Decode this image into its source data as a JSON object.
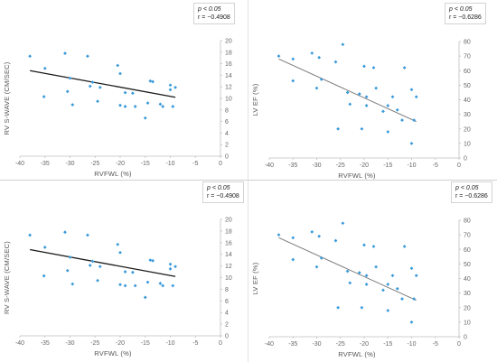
{
  "chart_data": [
    {
      "type": "scatter",
      "panel": "rv-top",
      "xlabel": "RVFWL (%)",
      "ylabel": "RV S-WAVE  (CM/SEC)",
      "xlim": [
        -40,
        0
      ],
      "ylim": [
        0,
        20
      ],
      "xticks": [
        -40,
        -35,
        -30,
        -25,
        -20,
        -15,
        -10,
        -5,
        0
      ],
      "yticks": [
        0,
        2,
        4,
        6,
        8,
        10,
        12,
        14,
        16,
        18,
        20
      ],
      "y_axis_position": "right",
      "stats": {
        "p": "p < 0.05",
        "r": "r = −0.4908"
      },
      "points": [
        {
          "x": -38,
          "y": 17.3
        },
        {
          "x": -35,
          "y": 15.2
        },
        {
          "x": -35.2,
          "y": 10.3
        },
        {
          "x": -31,
          "y": 17.8
        },
        {
          "x": -30.5,
          "y": 11.2
        },
        {
          "x": -30,
          "y": 13.5
        },
        {
          "x": -29.5,
          "y": 8.9
        },
        {
          "x": -26.5,
          "y": 17.3
        },
        {
          "x": -26,
          "y": 12.1
        },
        {
          "x": -25.5,
          "y": 12.8
        },
        {
          "x": -24.5,
          "y": 9.5
        },
        {
          "x": -24,
          "y": 11.9
        },
        {
          "x": -20.5,
          "y": 15.7
        },
        {
          "x": -20,
          "y": 14.3
        },
        {
          "x": -20,
          "y": 8.8
        },
        {
          "x": -19,
          "y": 11
        },
        {
          "x": -19,
          "y": 8.6
        },
        {
          "x": -17.5,
          "y": 10.9
        },
        {
          "x": -17,
          "y": 8.6
        },
        {
          "x": -15,
          "y": 6.6
        },
        {
          "x": -14.5,
          "y": 9.2
        },
        {
          "x": -14,
          "y": 13
        },
        {
          "x": -13.5,
          "y": 12.9
        },
        {
          "x": -12,
          "y": 9
        },
        {
          "x": -11.5,
          "y": 8.6
        },
        {
          "x": -10,
          "y": 12.3
        },
        {
          "x": -10,
          "y": 11.5
        },
        {
          "x": -9.5,
          "y": 8.6
        },
        {
          "x": -9,
          "y": 11.9
        }
      ],
      "trendline": {
        "x": [
          -38,
          -9
        ],
        "y": [
          14.8,
          10.2
        ]
      }
    },
    {
      "type": "scatter",
      "panel": "lv-top",
      "xlabel": "RVFWL (%)",
      "ylabel": "LV EF  (%)",
      "xlim": [
        -40,
        0
      ],
      "ylim": [
        0,
        80
      ],
      "xticks": [
        -40,
        -35,
        -30,
        -25,
        -20,
        -15,
        -10,
        -5,
        0
      ],
      "yticks": [
        0,
        10,
        20,
        30,
        40,
        50,
        60,
        70,
        80
      ],
      "y_axis_position": "right",
      "stats": {
        "p": "p < 0.05",
        "r": "r = −0.6286"
      },
      "points": [
        {
          "x": -38,
          "y": 70
        },
        {
          "x": -35,
          "y": 68
        },
        {
          "x": -35,
          "y": 53
        },
        {
          "x": -31,
          "y": 72
        },
        {
          "x": -30,
          "y": 48
        },
        {
          "x": -29.5,
          "y": 69
        },
        {
          "x": -29,
          "y": 54
        },
        {
          "x": -26,
          "y": 66
        },
        {
          "x": -25.5,
          "y": 20
        },
        {
          "x": -24.5,
          "y": 78
        },
        {
          "x": -23.5,
          "y": 45
        },
        {
          "x": -23,
          "y": 37
        },
        {
          "x": -21,
          "y": 44
        },
        {
          "x": -20.5,
          "y": 20
        },
        {
          "x": -20,
          "y": 63
        },
        {
          "x": -19.5,
          "y": 42
        },
        {
          "x": -19.5,
          "y": 36
        },
        {
          "x": -18,
          "y": 62
        },
        {
          "x": -17.5,
          "y": 48
        },
        {
          "x": -16,
          "y": 32
        },
        {
          "x": -15,
          "y": 36
        },
        {
          "x": -15,
          "y": 18
        },
        {
          "x": -14,
          "y": 42
        },
        {
          "x": -13,
          "y": 33
        },
        {
          "x": -12,
          "y": 26
        },
        {
          "x": -11.5,
          "y": 62
        },
        {
          "x": -10,
          "y": 47
        },
        {
          "x": -10,
          "y": 10
        },
        {
          "x": -9.5,
          "y": 26
        },
        {
          "x": -9,
          "y": 42
        }
      ],
      "trendline": {
        "x": [
          -38,
          -9
        ],
        "y": [
          68,
          25
        ]
      }
    },
    {
      "type": "scatter",
      "panel": "rv-bottom",
      "xlabel": "RVFWL (%)",
      "ylabel": "RV S-WAVE  (CM/SEC)",
      "xlim": [
        -40,
        0
      ],
      "ylim": [
        0,
        20
      ],
      "xticks": [
        -40,
        -35,
        -30,
        -25,
        -20,
        -15,
        -10,
        -5,
        0
      ],
      "yticks": [
        0,
        2,
        4,
        6,
        8,
        10,
        12,
        14,
        16,
        18,
        20
      ],
      "y_axis_position": "right",
      "stats": {
        "p": "p < 0.05",
        "r": "r = −0.4908"
      },
      "points": [
        {
          "x": -38,
          "y": 17.3
        },
        {
          "x": -35,
          "y": 15.2
        },
        {
          "x": -35.2,
          "y": 10.3
        },
        {
          "x": -31,
          "y": 17.8
        },
        {
          "x": -30.5,
          "y": 11.2
        },
        {
          "x": -30,
          "y": 13.5
        },
        {
          "x": -29.5,
          "y": 8.9
        },
        {
          "x": -26.5,
          "y": 17.3
        },
        {
          "x": -26,
          "y": 12.1
        },
        {
          "x": -25.5,
          "y": 12.8
        },
        {
          "x": -24.5,
          "y": 9.5
        },
        {
          "x": -24,
          "y": 11.9
        },
        {
          "x": -20.5,
          "y": 15.7
        },
        {
          "x": -20,
          "y": 14.3
        },
        {
          "x": -20,
          "y": 8.8
        },
        {
          "x": -19,
          "y": 11
        },
        {
          "x": -19,
          "y": 8.6
        },
        {
          "x": -17.5,
          "y": 10.9
        },
        {
          "x": -17,
          "y": 8.6
        },
        {
          "x": -15,
          "y": 6.6
        },
        {
          "x": -14.5,
          "y": 9.2
        },
        {
          "x": -14,
          "y": 13
        },
        {
          "x": -13.5,
          "y": 12.9
        },
        {
          "x": -12,
          "y": 9
        },
        {
          "x": -11.5,
          "y": 8.6
        },
        {
          "x": -10,
          "y": 12.3
        },
        {
          "x": -10,
          "y": 11.5
        },
        {
          "x": -9.5,
          "y": 8.6
        },
        {
          "x": -9,
          "y": 11.9
        }
      ],
      "trendline": {
        "x": [
          -38,
          -9
        ],
        "y": [
          14.8,
          10.2
        ]
      }
    },
    {
      "type": "scatter",
      "panel": "lv-bottom",
      "xlabel": "RVFWL (%)",
      "ylabel": "LV EF  (%)",
      "xlim": [
        -40,
        0
      ],
      "ylim": [
        0,
        80
      ],
      "xticks": [
        -40,
        -35,
        -30,
        -25,
        -20,
        -15,
        -10,
        -5,
        0
      ],
      "yticks": [
        0,
        10,
        20,
        30,
        40,
        50,
        60,
        70,
        80
      ],
      "y_axis_position": "right",
      "stats": {
        "p": "p < 0.05",
        "r": "r = −0.6286"
      },
      "points": [
        {
          "x": -38,
          "y": 70
        },
        {
          "x": -35,
          "y": 68
        },
        {
          "x": -35,
          "y": 53
        },
        {
          "x": -31,
          "y": 72
        },
        {
          "x": -30,
          "y": 48
        },
        {
          "x": -29.5,
          "y": 69
        },
        {
          "x": -29,
          "y": 54
        },
        {
          "x": -26,
          "y": 66
        },
        {
          "x": -25.5,
          "y": 20
        },
        {
          "x": -24.5,
          "y": 78
        },
        {
          "x": -23.5,
          "y": 45
        },
        {
          "x": -23,
          "y": 37
        },
        {
          "x": -21,
          "y": 44
        },
        {
          "x": -20.5,
          "y": 20
        },
        {
          "x": -20,
          "y": 63
        },
        {
          "x": -19.5,
          "y": 42
        },
        {
          "x": -19.5,
          "y": 36
        },
        {
          "x": -18,
          "y": 62
        },
        {
          "x": -17.5,
          "y": 48
        },
        {
          "x": -16,
          "y": 32
        },
        {
          "x": -15,
          "y": 36
        },
        {
          "x": -15,
          "y": 18
        },
        {
          "x": -14,
          "y": 42
        },
        {
          "x": -13,
          "y": 33
        },
        {
          "x": -12,
          "y": 26
        },
        {
          "x": -11.5,
          "y": 62
        },
        {
          "x": -10,
          "y": 47
        },
        {
          "x": -10,
          "y": 10
        },
        {
          "x": -9.5,
          "y": 26
        },
        {
          "x": -9,
          "y": 42
        }
      ],
      "trendline": {
        "x": [
          -38,
          -9
        ],
        "y": [
          68,
          25
        ]
      }
    }
  ],
  "colors": {
    "point": "#3a9ad9",
    "trendline": "#1a1a1a",
    "trendline_lv": "#7a7a7a",
    "axis": "#bfbfbf"
  }
}
